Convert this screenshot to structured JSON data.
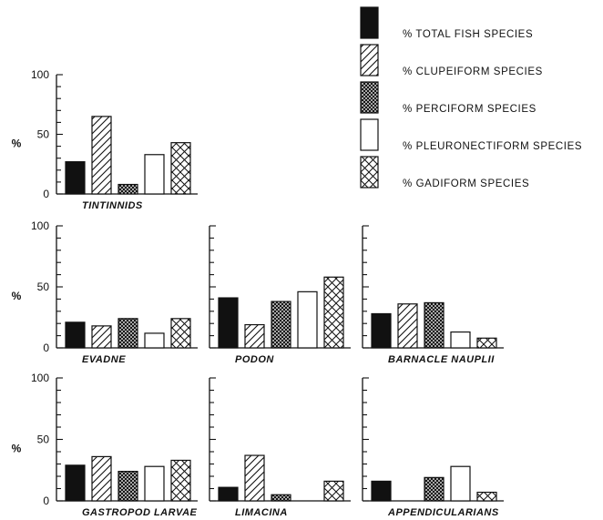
{
  "chart_data": {
    "type": "bar",
    "ylabel": "%",
    "ylim": [
      0,
      100
    ],
    "yticks": [
      "0",
      "50",
      "100"
    ],
    "legend": {
      "placement": "top-right",
      "entries": [
        {
          "label": "% TOTAL FISH SPECIES",
          "fill": "solid"
        },
        {
          "label": "% CLUPEIFORM SPECIES",
          "fill": "diagonal-hatch"
        },
        {
          "label": "% PERCIFORM SPECIES",
          "fill": "dense-crosshatch"
        },
        {
          "label": "% PLEURONECTIFORM SPECIES",
          "fill": "open"
        },
        {
          "label": "% GADIFORM SPECIES",
          "fill": "crosshatch"
        }
      ]
    },
    "panels": [
      {
        "title": "TINTINNIDS",
        "values": [
          27,
          65,
          8,
          33,
          43
        ],
        "show_yticks": true
      },
      {
        "title": "EVADNE",
        "values": [
          21,
          18,
          24,
          12,
          24
        ],
        "show_yticks": true
      },
      {
        "title": "PODON",
        "values": [
          41,
          19,
          38,
          46,
          58
        ],
        "show_yticks": false
      },
      {
        "title": "BARNACLE NAUPLII",
        "values": [
          28,
          36,
          37,
          13,
          8
        ],
        "show_yticks": false
      },
      {
        "title": "GASTROPOD LARVAE",
        "values": [
          29,
          36,
          24,
          28,
          33
        ],
        "show_yticks": true
      },
      {
        "title": "LIMACINA",
        "values": [
          11,
          37,
          5,
          0,
          16
        ],
        "show_yticks": false
      },
      {
        "title": "APPENDICULARIANS",
        "values": [
          16,
          0,
          19,
          28,
          7
        ],
        "show_yticks": false
      }
    ]
  }
}
